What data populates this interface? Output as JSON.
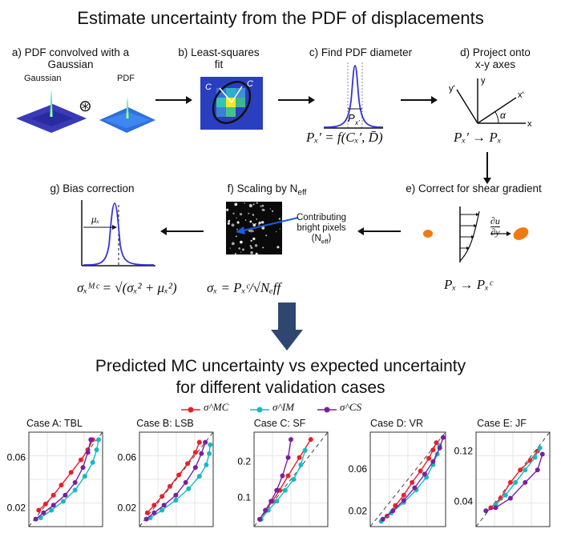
{
  "top_title": "Estimate uncertainty from the PDF of displacements",
  "steps": {
    "a": {
      "label": "a) PDF convolved with a Gaussian",
      "gaussian": "Gaussian",
      "pdf": "PDF",
      "op": "⊛"
    },
    "b": {
      "label": "b) Least-squares fit"
    },
    "c": {
      "label": "c) Find PDF diameter",
      "formula": "Pₓ′ = f(Cₓ′, D̄)"
    },
    "d": {
      "label": "d) Project onto x-y axes",
      "formula": "Pₓ′ → Pₓ"
    },
    "e": {
      "label": "e) Correct for shear gradient",
      "formula": "Pₓ → Pₓᶜ",
      "du": "∂u",
      "dy": "∂y"
    },
    "f": {
      "label_main": "f) Scaling by N",
      "label_sub": "eff",
      "formula": "σₓ = Pₓᶜ/√Nₑff",
      "annot1": "Contributing",
      "annot2": "bright pixels",
      "annot3": "(N",
      "annot3_sub": "eff",
      "annot3_end": ")"
    },
    "g": {
      "label": "g) Bias correction",
      "formula": "σₓᴹᶜ = √(σₓ² + μₓ²)",
      "mu": "μₓ"
    }
  },
  "bottom_title_1": "Predicted MC uncertainty vs expected uncertainty",
  "bottom_title_2": "for different validation cases",
  "legend": [
    {
      "name": "σ^MC",
      "color": "#e8202a"
    },
    {
      "name": "σ^IM",
      "color": "#19b8c0"
    },
    {
      "name": "σ^CS",
      "color": "#7a1fa2"
    }
  ],
  "colors": {
    "mc": "#e8202a",
    "im": "#19b8c0",
    "cs": "#7a1fa2",
    "arrow": "#2f4770",
    "pdf": "#3333dd"
  },
  "chart_data": [
    {
      "type": "line",
      "title": "Case A: TBL",
      "ticks": [
        {
          "v": 0.06,
          "label": "0.06"
        },
        {
          "v": 0.02,
          "label": "0.02"
        }
      ],
      "lim": [
        0.005,
        0.08
      ],
      "series": [
        {
          "name": "σ^MC",
          "x": [
            0.015,
            0.022,
            0.03,
            0.038,
            0.048,
            0.058,
            0.065,
            0.07
          ],
          "y": [
            0.018,
            0.023,
            0.03,
            0.038,
            0.048,
            0.058,
            0.066,
            0.074
          ]
        },
        {
          "name": "σ^IM",
          "x": [
            0.017,
            0.028,
            0.04,
            0.052,
            0.062,
            0.07,
            0.074,
            0.076
          ],
          "y": [
            0.012,
            0.018,
            0.025,
            0.034,
            0.045,
            0.056,
            0.066,
            0.074
          ]
        },
        {
          "name": "σ^CS",
          "x": [
            0.012,
            0.02,
            0.03,
            0.042,
            0.052,
            0.06,
            0.065,
            0.068
          ],
          "y": [
            0.011,
            0.016,
            0.022,
            0.03,
            0.04,
            0.052,
            0.064,
            0.074
          ]
        }
      ]
    },
    {
      "type": "line",
      "title": "Case B: LSB",
      "ticks": [
        {
          "v": 0.06,
          "label": "0.06"
        },
        {
          "v": 0.02,
          "label": "0.02"
        }
      ],
      "lim": [
        0.005,
        0.08
      ],
      "series": [
        {
          "name": "σ^MC",
          "x": [
            0.013,
            0.02,
            0.028,
            0.036,
            0.045,
            0.054,
            0.062,
            0.066
          ],
          "y": [
            0.016,
            0.022,
            0.029,
            0.037,
            0.046,
            0.055,
            0.064,
            0.072
          ]
        },
        {
          "name": "σ^IM",
          "x": [
            0.016,
            0.028,
            0.042,
            0.055,
            0.066,
            0.073,
            0.076,
            0.077
          ],
          "y": [
            0.012,
            0.018,
            0.026,
            0.035,
            0.045,
            0.054,
            0.063,
            0.07
          ]
        },
        {
          "name": "σ^CS",
          "x": [
            0.012,
            0.02,
            0.03,
            0.042,
            0.052,
            0.062,
            0.068,
            0.072
          ],
          "y": [
            0.011,
            0.016,
            0.022,
            0.03,
            0.04,
            0.052,
            0.063,
            0.072
          ]
        }
      ]
    },
    {
      "type": "line",
      "title": "Case C: SF",
      "ticks": [
        {
          "v": 0.2,
          "label": "0.2"
        },
        {
          "v": 0.1,
          "label": "0.1"
        }
      ],
      "lim": [
        0.02,
        0.28
      ],
      "series": [
        {
          "name": "σ^MC",
          "x": [
            0.04,
            0.06,
            0.085,
            0.11,
            0.14,
            0.18,
            0.22
          ],
          "y": [
            0.04,
            0.065,
            0.09,
            0.12,
            0.16,
            0.21,
            0.26
          ]
        },
        {
          "name": "σ^IM",
          "x": [
            0.045,
            0.07,
            0.1,
            0.13,
            0.16,
            0.185,
            0.2
          ],
          "y": [
            0.04,
            0.065,
            0.09,
            0.12,
            0.15,
            0.19,
            0.23
          ]
        },
        {
          "name": "σ^CS",
          "x": [
            0.04,
            0.06,
            0.08,
            0.1,
            0.12,
            0.14,
            0.15
          ],
          "y": [
            0.04,
            0.065,
            0.09,
            0.12,
            0.16,
            0.21,
            0.26
          ]
        }
      ]
    },
    {
      "type": "line",
      "title": "Case D: VR",
      "ticks": [
        {
          "v": 0.06,
          "label": "0.06"
        },
        {
          "v": 0.02,
          "label": "0.02"
        }
      ],
      "lim": [
        0.005,
        0.095
      ],
      "series": [
        {
          "name": "σ^MC",
          "x": [
            0.025,
            0.035,
            0.045,
            0.055,
            0.065,
            0.075,
            0.08,
            0.084
          ],
          "y": [
            0.015,
            0.025,
            0.035,
            0.047,
            0.058,
            0.07,
            0.078,
            0.085
          ]
        },
        {
          "name": "σ^IM",
          "x": [
            0.018,
            0.03,
            0.045,
            0.06,
            0.072,
            0.08,
            0.085,
            0.088
          ],
          "y": [
            0.01,
            0.018,
            0.028,
            0.04,
            0.052,
            0.064,
            0.074,
            0.082
          ]
        },
        {
          "name": "σ^CS",
          "x": [
            0.02,
            0.032,
            0.045,
            0.058,
            0.07,
            0.08,
            0.088,
            0.092
          ],
          "y": [
            0.012,
            0.02,
            0.03,
            0.042,
            0.055,
            0.067,
            0.08,
            0.09
          ]
        }
      ]
    },
    {
      "type": "line",
      "title": "Case E: JF",
      "ticks": [
        {
          "v": 0.12,
          "label": "0.12"
        },
        {
          "v": 0.04,
          "label": "0.04"
        }
      ],
      "lim": [
        0.0,
        0.15
      ],
      "series": [
        {
          "name": "σ^MC",
          "x": [
            0.03,
            0.05,
            0.07,
            0.09,
            0.11,
            0.125
          ],
          "y": [
            0.03,
            0.045,
            0.07,
            0.09,
            0.105,
            0.12
          ]
        },
        {
          "name": "σ^IM",
          "x": [
            0.04,
            0.06,
            0.08,
            0.1,
            0.12,
            0.13
          ],
          "y": [
            0.035,
            0.05,
            0.07,
            0.09,
            0.11,
            0.125
          ]
        },
        {
          "name": "σ^CS",
          "x": [
            0.02,
            0.04,
            0.07,
            0.1,
            0.125,
            0.135
          ],
          "y": [
            0.025,
            0.03,
            0.045,
            0.07,
            0.09,
            0.115
          ]
        }
      ]
    }
  ]
}
